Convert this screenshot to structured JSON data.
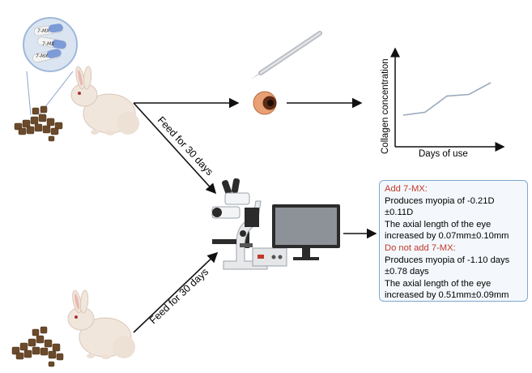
{
  "feed_labels": {
    "top": "Feed for 30 days",
    "bottom": "Feed for 30 days"
  },
  "pill_label": "7-MX",
  "graph": {
    "ylabel": "Collagen concentration",
    "xlabel": "Days of use"
  },
  "chart_data": {
    "type": "line",
    "x": [
      1,
      2,
      3,
      4,
      5
    ],
    "y": [
      1.0,
      1.2,
      2.3,
      2.4,
      3.2
    ],
    "xlabel": "Days of use",
    "ylabel": "Collagen concentration"
  },
  "results": {
    "add_title": "Add 7-MX:",
    "add_line1": "Produces myopia of -0.21D",
    "add_line2": "±0.11D",
    "add_line3": "The axial length of the eye",
    "add_line4": "increased by 0.07mm±0.10mm",
    "no_title": "Do not add 7-MX:",
    "no_line1": "Produces myopia of -1.10 days",
    "no_line2": "±0.78 days",
    "no_line3": "The axial length of the eye",
    "no_line4": "increased by 0.51mm±0.09mm"
  },
  "colors": {
    "box_border": "#7fa7cf",
    "red_text": "#c0392b",
    "rabbit": "#f1e6dc",
    "pellet": "#6b4a2b",
    "pill_blue": "#7d9bd6"
  }
}
